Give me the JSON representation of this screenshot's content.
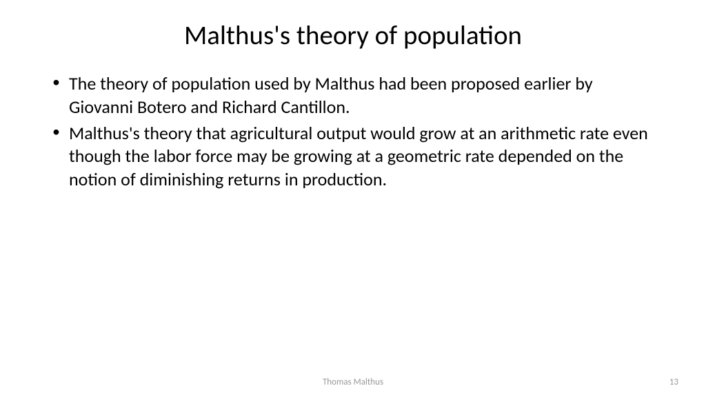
{
  "slide": {
    "title": "Malthus's theory of population",
    "bullets": [
      "The theory of population used by Malthus had been proposed earlier by Giovanni Botero and Richard Cantillon.",
      "Malthus's theory that agricultural output would grow at an arithmetic rate even though the labor force may be growing at a geometric rate depended on the notion of diminishing returns in production."
    ],
    "footer": {
      "center": "Thomas Malthus",
      "pageNumber": "13"
    }
  },
  "styling": {
    "background_color": "#ffffff",
    "title_color": "#000000",
    "title_fontsize": 39,
    "title_fontweight": 400,
    "body_color": "#000000",
    "body_fontsize": 26,
    "footer_color": "#989898",
    "footer_fontsize": 13,
    "font_family": "Calibri"
  }
}
